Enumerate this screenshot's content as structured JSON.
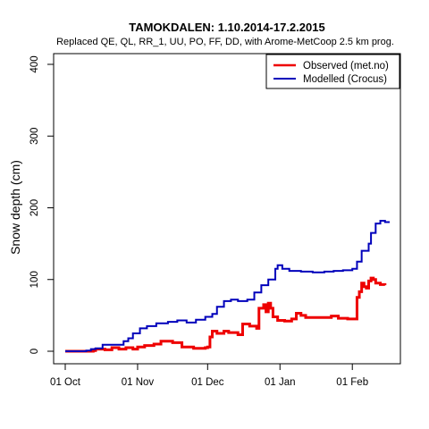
{
  "chart_data": {
    "type": "line",
    "title": "TAMOKDALEN: 1.10.2014-17.2.2015",
    "subtitle": "Replaced QE, QL, RR_1, UU, PO, FF, DD,  with Arome-MetCoop 2.5 km prog.",
    "xlabel": "",
    "ylabel": "Snow depth (cm)",
    "xlim": [
      "2014-10-01",
      "2015-02-17"
    ],
    "ylim": [
      0,
      400
    ],
    "yticks": [
      0,
      100,
      200,
      300,
      400
    ],
    "xticks": [
      {
        "date": "2014-10-01",
        "label": "01 Oct"
      },
      {
        "date": "2014-11-01",
        "label": "01 Nov"
      },
      {
        "date": "2014-12-01",
        "label": "01 Dec"
      },
      {
        "date": "2015-01-01",
        "label": "01 Jan"
      },
      {
        "date": "2015-02-01",
        "label": "01 Feb"
      }
    ],
    "grid": false,
    "legend": {
      "position": "top-right"
    },
    "series": [
      {
        "name": "Observed (met.no)",
        "color": "#ee0000",
        "points": [
          [
            "2014-10-01",
            0
          ],
          [
            "2014-10-05",
            0
          ],
          [
            "2014-10-10",
            0
          ],
          [
            "2014-10-13",
            1
          ],
          [
            "2014-10-14",
            3
          ],
          [
            "2014-10-18",
            2
          ],
          [
            "2014-10-21",
            5
          ],
          [
            "2014-10-24",
            3
          ],
          [
            "2014-10-27",
            5
          ],
          [
            "2014-10-30",
            3
          ],
          [
            "2014-11-01",
            6
          ],
          [
            "2014-11-04",
            8
          ],
          [
            "2014-11-08",
            10
          ],
          [
            "2014-11-11",
            14
          ],
          [
            "2014-11-16",
            12
          ],
          [
            "2014-11-20",
            6
          ],
          [
            "2014-11-25",
            4
          ],
          [
            "2014-11-30",
            5
          ],
          [
            "2014-12-01",
            6
          ],
          [
            "2014-12-02",
            20
          ],
          [
            "2014-12-03",
            28
          ],
          [
            "2014-12-05",
            25
          ],
          [
            "2014-12-08",
            28
          ],
          [
            "2014-12-10",
            26
          ],
          [
            "2014-12-14",
            23
          ],
          [
            "2014-12-16",
            38
          ],
          [
            "2014-12-19",
            35
          ],
          [
            "2014-12-22",
            32
          ],
          [
            "2014-12-23",
            60
          ],
          [
            "2014-12-25",
            65
          ],
          [
            "2014-12-26",
            55
          ],
          [
            "2014-12-27",
            67
          ],
          [
            "2014-12-28",
            60
          ],
          [
            "2014-12-29",
            48
          ],
          [
            "2014-12-31",
            43
          ],
          [
            "2015-01-03",
            42
          ],
          [
            "2015-01-06",
            45
          ],
          [
            "2015-01-08",
            53
          ],
          [
            "2015-01-10",
            50
          ],
          [
            "2015-01-12",
            47
          ],
          [
            "2015-01-16",
            47
          ],
          [
            "2015-01-20",
            47
          ],
          [
            "2015-01-23",
            49
          ],
          [
            "2015-01-26",
            46
          ],
          [
            "2015-01-30",
            45
          ],
          [
            "2015-02-02",
            45
          ],
          [
            "2015-02-03",
            75
          ],
          [
            "2015-02-04",
            83
          ],
          [
            "2015-02-05",
            95
          ],
          [
            "2015-02-06",
            90
          ],
          [
            "2015-02-07",
            88
          ],
          [
            "2015-02-08",
            98
          ],
          [
            "2015-02-09",
            102
          ],
          [
            "2015-02-10",
            100
          ],
          [
            "2015-02-11",
            95
          ],
          [
            "2015-02-13",
            93
          ],
          [
            "2015-02-15",
            92
          ]
        ]
      },
      {
        "name": "Modelled (Crocus)",
        "color": "#0000bb",
        "points": [
          [
            "2014-10-01",
            0
          ],
          [
            "2014-10-06",
            0
          ],
          [
            "2014-10-10",
            1
          ],
          [
            "2014-10-12",
            3
          ],
          [
            "2014-10-14",
            4
          ],
          [
            "2014-10-17",
            9
          ],
          [
            "2014-10-22",
            9
          ],
          [
            "2014-10-26",
            14
          ],
          [
            "2014-10-28",
            18
          ],
          [
            "2014-10-30",
            25
          ],
          [
            "2014-11-02",
            32
          ],
          [
            "2014-11-05",
            35
          ],
          [
            "2014-11-09",
            39
          ],
          [
            "2014-11-14",
            41
          ],
          [
            "2014-11-18",
            43
          ],
          [
            "2014-11-22",
            40
          ],
          [
            "2014-11-26",
            44
          ],
          [
            "2014-11-30",
            48
          ],
          [
            "2014-12-03",
            52
          ],
          [
            "2014-12-05",
            62
          ],
          [
            "2014-12-08",
            70
          ],
          [
            "2014-12-11",
            72
          ],
          [
            "2014-12-14",
            70
          ],
          [
            "2014-12-18",
            72
          ],
          [
            "2014-12-21",
            82
          ],
          [
            "2014-12-24",
            92
          ],
          [
            "2014-12-27",
            100
          ],
          [
            "2014-12-30",
            115
          ],
          [
            "2014-12-31",
            120
          ],
          [
            "2015-01-02",
            115
          ],
          [
            "2015-01-05",
            112
          ],
          [
            "2015-01-10",
            111
          ],
          [
            "2015-01-15",
            110
          ],
          [
            "2015-01-20",
            111
          ],
          [
            "2015-01-24",
            112
          ],
          [
            "2015-01-28",
            113
          ],
          [
            "2015-02-01",
            115
          ],
          [
            "2015-02-03",
            125
          ],
          [
            "2015-02-05",
            140
          ],
          [
            "2015-02-08",
            150
          ],
          [
            "2015-02-09",
            165
          ],
          [
            "2015-02-11",
            178
          ],
          [
            "2015-02-13",
            182
          ],
          [
            "2015-02-15",
            180
          ],
          [
            "2015-02-17",
            180
          ]
        ]
      }
    ]
  }
}
